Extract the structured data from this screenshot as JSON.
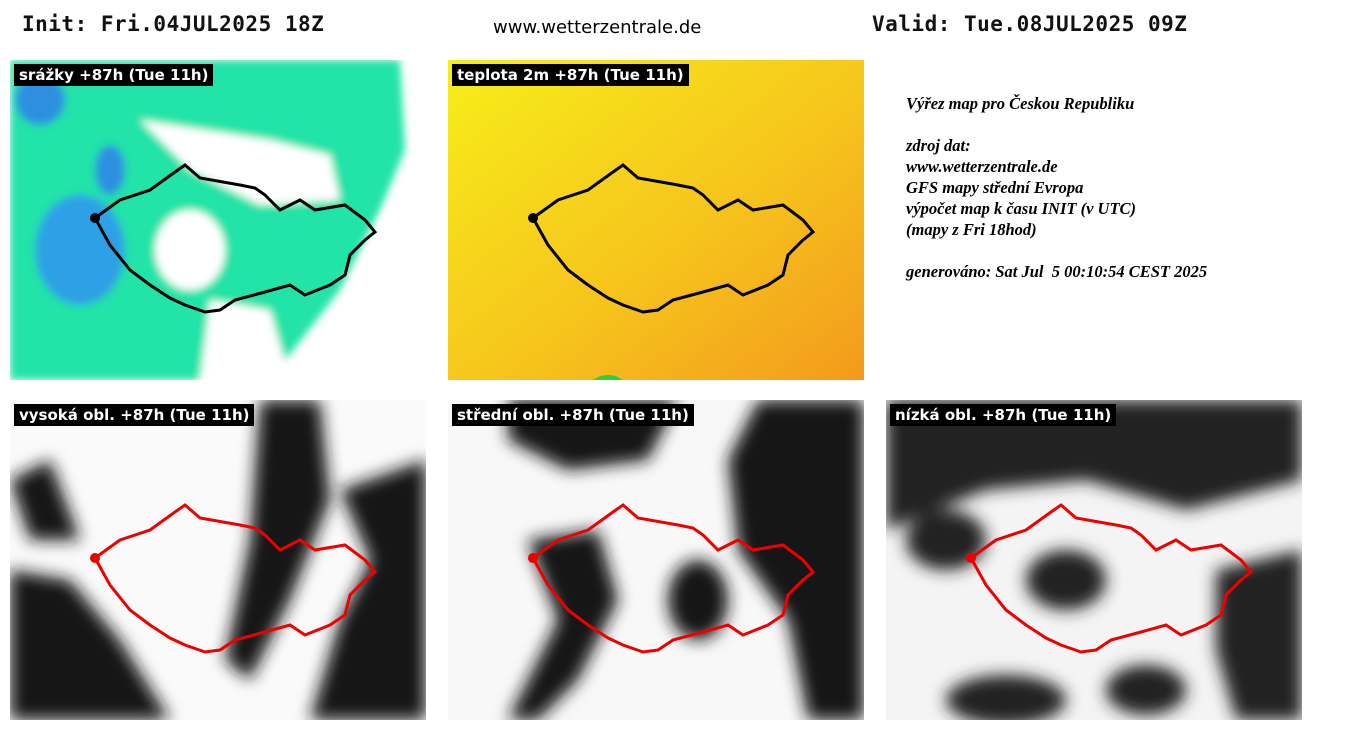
{
  "header": {
    "init": "Init: Fri.04JUL2025 18Z",
    "site": "www.wetterzentrale.de",
    "valid": "Valid: Tue.08JUL2025 09Z"
  },
  "panels": [
    {
      "label": "srážky +87h (Tue 11h)"
    },
    {
      "label": "teplota 2m +87h (Tue 11h)"
    },
    {
      "label": "vysoká obl. +87h (Tue 11h)"
    },
    {
      "label": "střední obl. +87h (Tue 11h)"
    },
    {
      "label": "nízká obl. +87h (Tue 11h)"
    }
  ],
  "info": [
    "Výřez map pro Českou Republiku",
    "",
    "zdroj dat:",
    "www.wetterzentrale.de",
    "GFS mapy střední Evropa",
    "výpočet map k času INIT (v UTC)",
    "(mapy z Fri 18hod)",
    "",
    "generováno: Sat Jul  5 00:10:54 CEST 2025"
  ]
}
